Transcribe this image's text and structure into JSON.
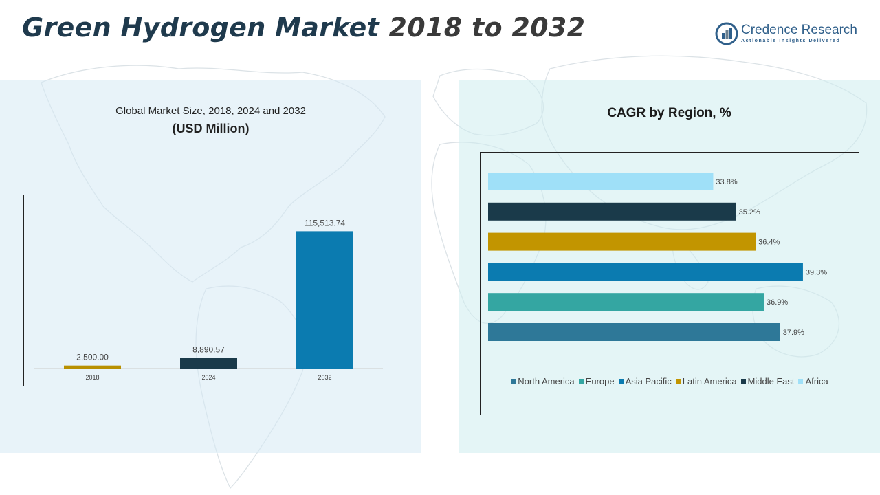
{
  "header": {
    "title_part1": "Green Hydrogen Market",
    "title_part2": " 2018 to 2032"
  },
  "logo": {
    "name": "Credence Research",
    "tagline": "Actionable Insights Delivered"
  },
  "left_panel": {
    "title_line1": "Global Market Size, 2018, 2024 and 2032",
    "title_line2": "(USD Million)"
  },
  "right_panel": {
    "title": "CAGR by Region, %"
  },
  "chart_data": [
    {
      "type": "bar",
      "categories": [
        "2018",
        "2024",
        "2032"
      ],
      "values": [
        2500.0,
        8890.57,
        115513.74
      ],
      "data_labels": [
        "2,500.00",
        "8,890.57",
        "115,513.74"
      ],
      "colors": [
        "#b89000",
        "#1a3a4a",
        "#0b7bb0"
      ],
      "title": "Global Market Size, 2018, 2024 and 2032",
      "subtitle": "(USD Million)",
      "xlabel": "",
      "ylabel": "",
      "ylim": [
        0,
        125000
      ],
      "grid": false
    },
    {
      "type": "bar",
      "orientation": "horizontal",
      "title": "CAGR by Region, %",
      "categories": [
        "North America",
        "Europe",
        "Asia Pacific",
        "Latin America",
        "Middle East",
        "Africa"
      ],
      "values": [
        37.9,
        36.9,
        39.3,
        36.4,
        35.2,
        33.8
      ],
      "data_labels": [
        "37.9%",
        "36.9%",
        "39.3%",
        "36.4%",
        "35.2%",
        "33.8%"
      ],
      "colors": [
        "#2e7898",
        "#34a6a2",
        "#0b7bb0",
        "#c29500",
        "#1a3a4a",
        "#9fe0f8"
      ],
      "xlim": [
        20,
        42
      ],
      "legend": "bottom",
      "grid": false
    }
  ]
}
